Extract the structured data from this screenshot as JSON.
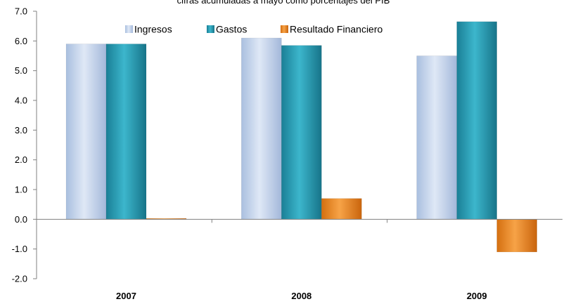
{
  "chart_data": {
    "type": "bar",
    "title": "cifras acumuladas a mayo como porcentajes del PIB",
    "categories": [
      "2007",
      "2008",
      "2009"
    ],
    "series": [
      {
        "name": "Ingresos",
        "values": [
          5.9,
          6.1,
          5.5
        ],
        "color": "#c5d5ec"
      },
      {
        "name": "Gastos",
        "values": [
          5.9,
          5.85,
          6.65
        ],
        "color": "#2b9fb5"
      },
      {
        "name": "Resultado Financiero",
        "values": [
          0.03,
          0.7,
          -1.1
        ],
        "color": "#ef8a22"
      }
    ],
    "ylim": [
      -2.0,
      7.0
    ],
    "yticks": [
      "-2.0",
      "-1.0",
      "0.0",
      "1.0",
      "2.0",
      "3.0",
      "4.0",
      "5.0",
      "6.0",
      "7.0"
    ],
    "grid": false,
    "legend_position": "top-center"
  }
}
